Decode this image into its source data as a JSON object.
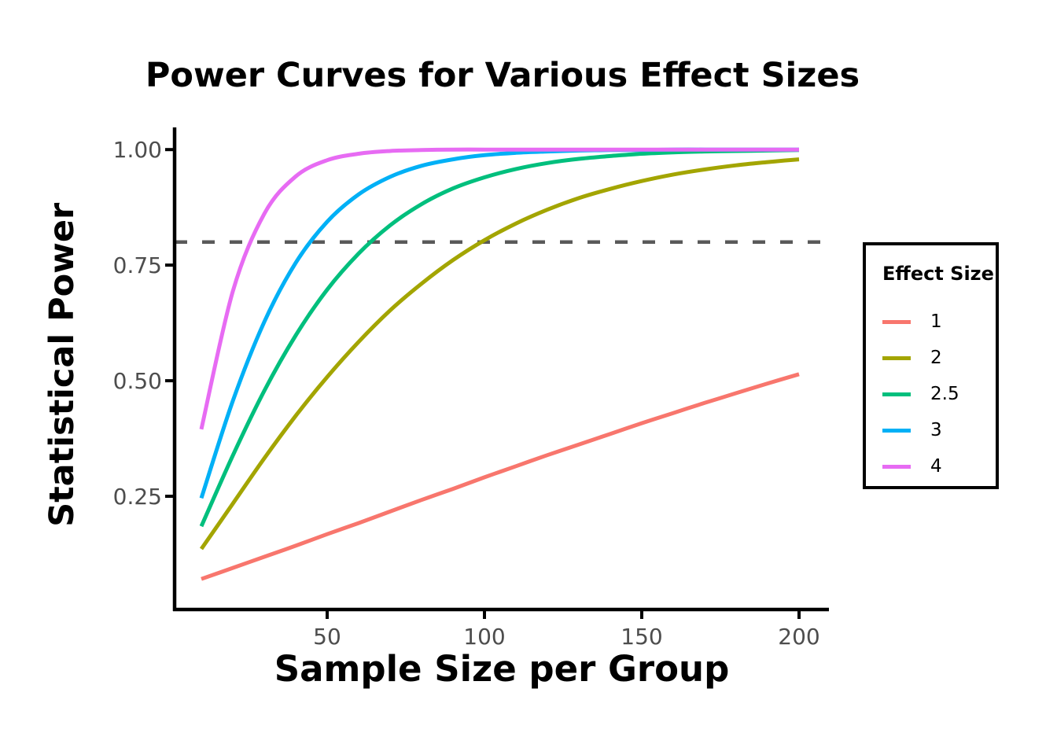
{
  "title": "Power Curves for Various Effect Sizes",
  "axes": {
    "x": {
      "title": "Sample Size per Group",
      "tick_labels": [
        "50",
        "100",
        "150",
        "200"
      ],
      "tick_values": [
        50,
        100,
        150,
        200
      ]
    },
    "y": {
      "title": "Statistical Power",
      "tick_labels": [
        "0.25",
        "0.50",
        "0.75",
        "1.00"
      ],
      "tick_values": [
        0.25,
        0.5,
        0.75,
        1.0
      ]
    }
  },
  "legend": {
    "title": "Effect Size",
    "entries": [
      {
        "label": "1",
        "color": "#F8766D"
      },
      {
        "label": "2",
        "color": "#A3A500"
      },
      {
        "label": "2.5",
        "color": "#00BF7D"
      },
      {
        "label": "3",
        "color": "#00B0F6"
      },
      {
        "label": "4",
        "color": "#E76BF3"
      }
    ]
  },
  "reference_line": {
    "y": 0.8,
    "color": "#595959",
    "style": "dashed"
  },
  "styles": {
    "axis_text_color": "#4D4D4D",
    "axis_line_color": "#000000",
    "background": "#FFFFFF"
  },
  "chart_data": {
    "type": "line",
    "title": "Power Curves for Various Effect Sizes",
    "xlabel": "Sample Size per Group",
    "ylabel": "Statistical Power",
    "x": [
      10,
      20,
      30,
      40,
      50,
      60,
      70,
      80,
      90,
      100,
      110,
      120,
      130,
      140,
      150,
      160,
      170,
      180,
      190,
      200
    ],
    "series": [
      {
        "name": "1",
        "color": "#F8766D",
        "values": [
          0.071,
          0.095,
          0.119,
          0.143,
          0.168,
          0.192,
          0.217,
          0.242,
          0.266,
          0.291,
          0.315,
          0.339,
          0.362,
          0.385,
          0.408,
          0.43,
          0.452,
          0.473,
          0.494,
          0.514
        ]
      },
      {
        "name": "2",
        "color": "#A3A500",
        "values": [
          0.136,
          0.234,
          0.332,
          0.424,
          0.508,
          0.584,
          0.652,
          0.71,
          0.761,
          0.804,
          0.84,
          0.87,
          0.895,
          0.915,
          0.932,
          0.946,
          0.957,
          0.966,
          0.973,
          0.979
        ]
      },
      {
        "name": "2.5",
        "color": "#00BF7D",
        "values": [
          0.185,
          0.338,
          0.478,
          0.598,
          0.697,
          0.775,
          0.836,
          0.882,
          0.916,
          0.94,
          0.958,
          0.971,
          0.98,
          0.986,
          0.991,
          0.994,
          0.996,
          0.997,
          0.998,
          0.999
        ]
      },
      {
        "name": "3",
        "color": "#00B0F6",
        "values": [
          0.246,
          0.456,
          0.627,
          0.755,
          0.844,
          0.903,
          0.941,
          0.965,
          0.979,
          0.988,
          0.993,
          0.996,
          0.998,
          0.999,
          0.999,
          1.0,
          1.0,
          1.0,
          1.0,
          1.0
        ]
      },
      {
        "name": "4",
        "color": "#E76BF3",
        "values": [
          0.395,
          0.693,
          0.861,
          0.942,
          0.977,
          0.991,
          0.997,
          0.999,
          1.0,
          1.0,
          1.0,
          1.0,
          1.0,
          1.0,
          1.0,
          1.0,
          1.0,
          1.0,
          1.0,
          1.0
        ]
      }
    ],
    "xlim": [
      1.5,
      209.5
    ],
    "ylim": [
      0.005,
      1.048
    ],
    "x_ticks": [
      50,
      100,
      150,
      200
    ],
    "y_ticks": [
      0.25,
      0.5,
      0.75,
      1.0
    ],
    "hline": {
      "y": 0.8,
      "style": "dashed"
    },
    "grid": false,
    "legend_position": "right"
  }
}
